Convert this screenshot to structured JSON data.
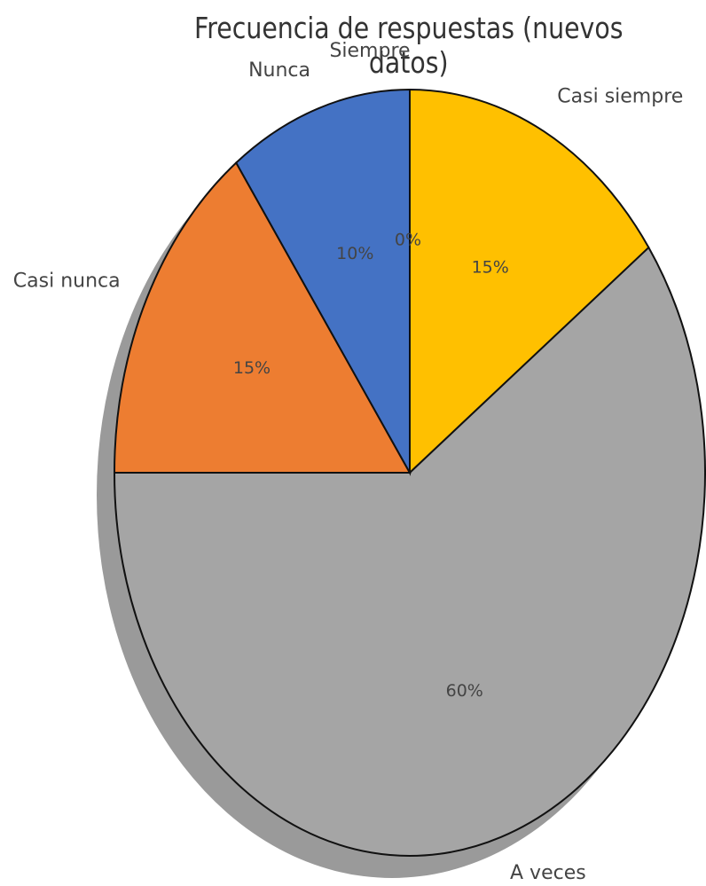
{
  "chart_data": {
    "type": "pie",
    "title": "Frecuencia de respuestas (nuevos datos)",
    "categories": [
      "Siempre",
      "Casi siempre",
      "A veces",
      "Casi nunca",
      "Nunca"
    ],
    "values": [
      0,
      15,
      60,
      15,
      10
    ],
    "value_labels": [
      "0%",
      "15%",
      "60%",
      "15%",
      "10%"
    ],
    "colors": [
      "#4472c4",
      "#ffc000",
      "#a5a5a5",
      "#ed7d31",
      "#4472c4"
    ],
    "shadow": true,
    "legend": "none"
  }
}
